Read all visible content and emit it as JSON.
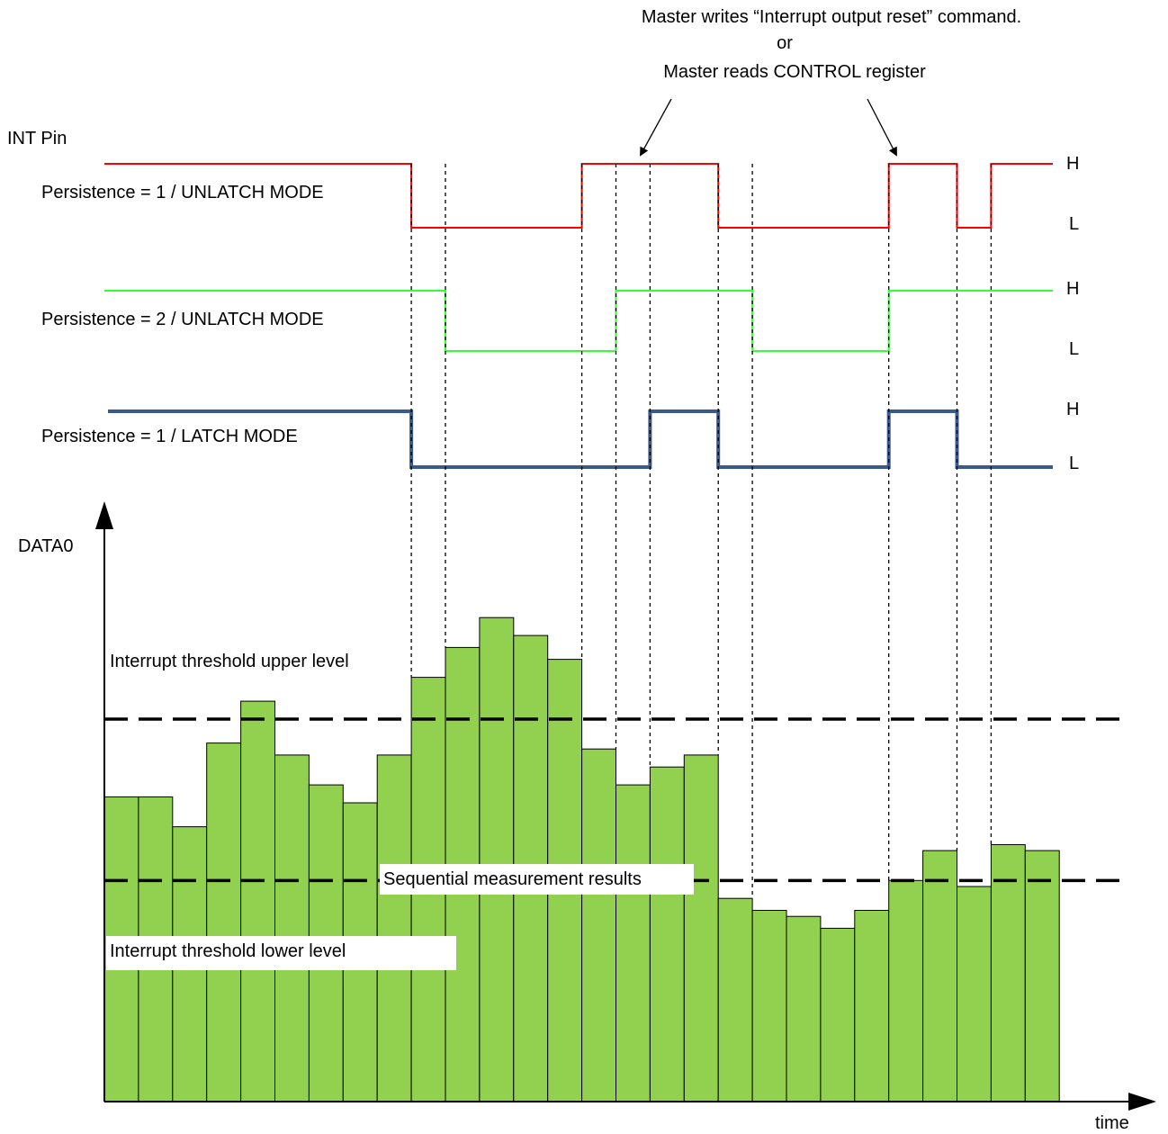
{
  "annotation": {
    "line1": "Master writes “Interrupt output reset” command.",
    "line2": "or",
    "line3": "Master reads CONTROL register"
  },
  "int_pin_label": "INT Pin",
  "signals": [
    {
      "label": "Persistence = 1 / UNLATCH MODE",
      "color": "#ff0000",
      "high": "H",
      "low": "L",
      "transitions_bar_edge": [
        9,
        14,
        18,
        23,
        25,
        26
      ],
      "initial": "H"
    },
    {
      "label": "Persistence = 2 / UNLATCH MODE",
      "color": "#33ff33",
      "high": "H",
      "low": "L",
      "transitions_bar_edge": [
        10,
        15,
        19,
        23
      ],
      "initial": "H"
    },
    {
      "label": "Persistence = 1 / LATCH MODE",
      "color": "#3a5a8a",
      "high": "H",
      "low": "L",
      "transitions_bar_edge": [
        9,
        16,
        18,
        23,
        25
      ],
      "initial": "H"
    }
  ],
  "chart": {
    "ylabel": "DATA0",
    "xlabel": "time",
    "upper_threshold_label": "Interrupt threshold upper level",
    "lower_threshold_label": "Interrupt threshold lower level",
    "series_label": "Sequential measurement results",
    "bar_color": "#92d050"
  },
  "chart_data": {
    "type": "bar",
    "ylabel": "DATA0",
    "xlabel": "time",
    "values": [
      51,
      51,
      46,
      60,
      67,
      58,
      53,
      50,
      58,
      71,
      76,
      81,
      78,
      74,
      59,
      53,
      56,
      58,
      34,
      32,
      31,
      29,
      32,
      37,
      42,
      36,
      43,
      42
    ],
    "upper_threshold": 64,
    "lower_threshold": 37,
    "ylim": [
      0,
      100
    ]
  }
}
